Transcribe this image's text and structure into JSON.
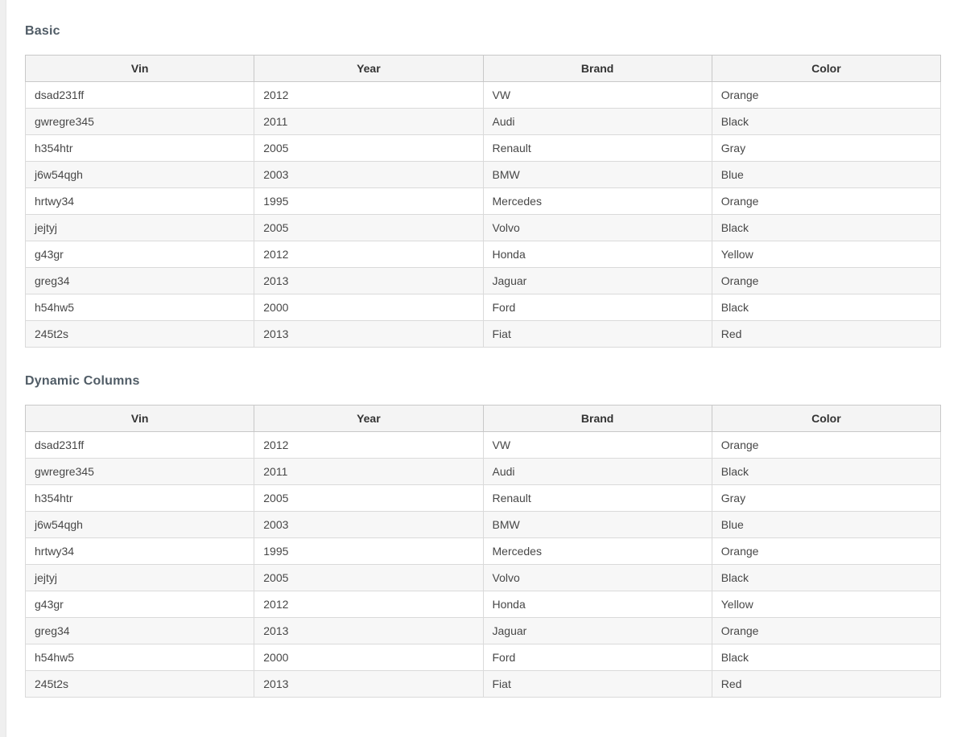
{
  "colors": {
    "heading_text": "#505c66",
    "header_cell_background": "#f4f4f4",
    "header_cell_border": "#c8c8c8",
    "body_cell_border": "#dadada",
    "striped_row_background": "#f7f7f7",
    "body_text": "#474747",
    "page_edge_strip": "#efefef"
  },
  "sections": [
    {
      "title": "Basic",
      "table": {
        "columns": [
          "Vin",
          "Year",
          "Brand",
          "Color"
        ],
        "rows": [
          [
            "dsad231ff",
            "2012",
            "VW",
            "Orange"
          ],
          [
            "gwregre345",
            "2011",
            "Audi",
            "Black"
          ],
          [
            "h354htr",
            "2005",
            "Renault",
            "Gray"
          ],
          [
            "j6w54qgh",
            "2003",
            "BMW",
            "Blue"
          ],
          [
            "hrtwy34",
            "1995",
            "Mercedes",
            "Orange"
          ],
          [
            "jejtyj",
            "2005",
            "Volvo",
            "Black"
          ],
          [
            "g43gr",
            "2012",
            "Honda",
            "Yellow"
          ],
          [
            "greg34",
            "2013",
            "Jaguar",
            "Orange"
          ],
          [
            "h54hw5",
            "2000",
            "Ford",
            "Black"
          ],
          [
            "245t2s",
            "2013",
            "Fiat",
            "Red"
          ]
        ]
      }
    },
    {
      "title": "Dynamic Columns",
      "table": {
        "columns": [
          "Vin",
          "Year",
          "Brand",
          "Color"
        ],
        "rows": [
          [
            "dsad231ff",
            "2012",
            "VW",
            "Orange"
          ],
          [
            "gwregre345",
            "2011",
            "Audi",
            "Black"
          ],
          [
            "h354htr",
            "2005",
            "Renault",
            "Gray"
          ],
          [
            "j6w54qgh",
            "2003",
            "BMW",
            "Blue"
          ],
          [
            "hrtwy34",
            "1995",
            "Mercedes",
            "Orange"
          ],
          [
            "jejtyj",
            "2005",
            "Volvo",
            "Black"
          ],
          [
            "g43gr",
            "2012",
            "Honda",
            "Yellow"
          ],
          [
            "greg34",
            "2013",
            "Jaguar",
            "Orange"
          ],
          [
            "h54hw5",
            "2000",
            "Ford",
            "Black"
          ],
          [
            "245t2s",
            "2013",
            "Fiat",
            "Red"
          ]
        ]
      }
    }
  ]
}
